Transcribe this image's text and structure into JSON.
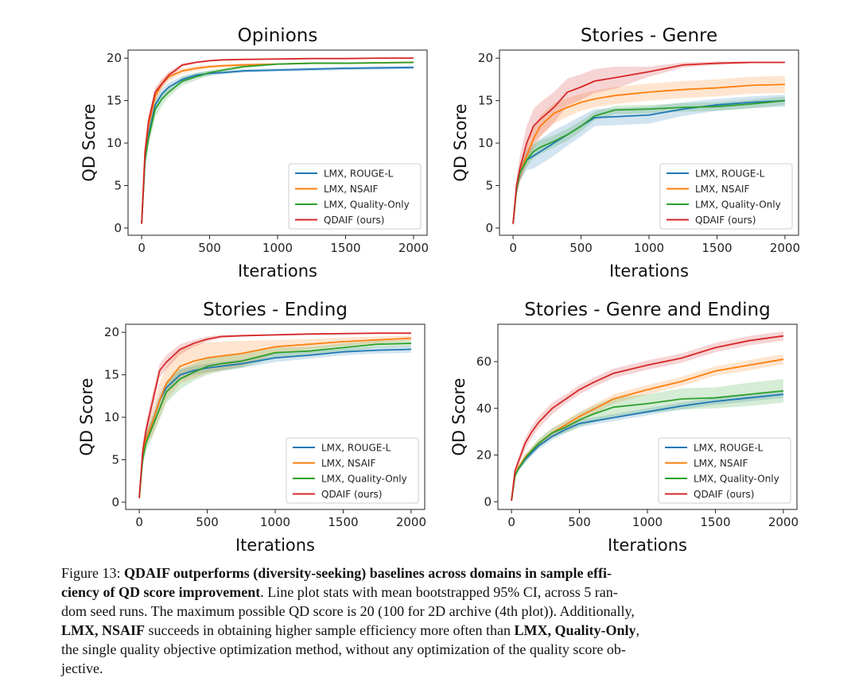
{
  "colors": {
    "LMX, ROUGE-L": "#1f77b4",
    "LMX, NSAIF": "#ff7f0e",
    "LMX, Quality-Only": "#2ca02c",
    "QDAIF (ours)": "#d62728"
  },
  "chart_data": [
    {
      "type": "line",
      "title": "Opinions",
      "xlabel": "Iterations",
      "ylabel": "QD Score",
      "xlim": [
        -100,
        2100
      ],
      "ylim": [
        -0.85,
        20.95
      ],
      "xticks": [
        0,
        500,
        1000,
        1500,
        2000
      ],
      "yticks": [
        0,
        5,
        10,
        15,
        20
      ],
      "legend": "lower-right",
      "grid": false,
      "x": [
        0,
        25,
        50,
        100,
        150,
        200,
        300,
        400,
        500,
        600,
        750,
        1000,
        1250,
        1500,
        1750,
        2000
      ],
      "series": [
        {
          "name": "LMX, ROUGE-L",
          "values": [
            0.5,
            8,
            11,
            14.5,
            15.8,
            16.6,
            17.5,
            18,
            18.2,
            18.3,
            18.5,
            18.6,
            18.7,
            18.8,
            18.85,
            18.9
          ],
          "ci": [
            0.3,
            0.8,
            0.8,
            0.8,
            0.6,
            0.5,
            0.4,
            0.3,
            0.3,
            0.2,
            0.2,
            0.2,
            0.2,
            0.2,
            0.2,
            0.2
          ]
        },
        {
          "name": "LMX, NSAIF",
          "values": [
            0.5,
            9,
            12,
            15.5,
            17,
            17.8,
            18.5,
            18.8,
            19,
            19.1,
            19.2,
            19.3,
            19.4,
            19.4,
            19.45,
            19.5
          ],
          "ci": [
            0.3,
            0.8,
            0.8,
            0.7,
            0.6,
            0.5,
            0.3,
            0.3,
            0.2,
            0.2,
            0.2,
            0.1,
            0.1,
            0.1,
            0.1,
            0.1
          ]
        },
        {
          "name": "LMX, Quality-Only",
          "values": [
            0.5,
            8,
            10.5,
            14,
            15.2,
            16,
            17.3,
            17.8,
            18.3,
            18.6,
            19,
            19.3,
            19.4,
            19.4,
            19.45,
            19.5
          ],
          "ci": [
            0.3,
            1,
            1,
            1,
            0.8,
            0.6,
            0.5,
            0.4,
            0.3,
            0.2,
            0.2,
            0.1,
            0.1,
            0.1,
            0.1,
            0.1
          ]
        },
        {
          "name": "QDAIF (ours)",
          "values": [
            0.5,
            9,
            12.5,
            16,
            17,
            18,
            19.2,
            19.5,
            19.7,
            19.8,
            19.85,
            19.9,
            19.95,
            19.95,
            20,
            20
          ],
          "ci": [
            0.3,
            0.8,
            0.8,
            0.6,
            0.5,
            0.4,
            0.2,
            0.1,
            0.1,
            0.1,
            0.1,
            0.1,
            0.05,
            0.05,
            0.05,
            0.05
          ]
        }
      ]
    },
    {
      "type": "line",
      "title": "Stories - Genre",
      "xlabel": "Iterations",
      "ylabel": "QD Score",
      "xlim": [
        -100,
        2100
      ],
      "ylim": [
        -0.85,
        20.95
      ],
      "xticks": [
        0,
        500,
        1000,
        1500,
        2000
      ],
      "yticks": [
        0,
        5,
        10,
        15,
        20
      ],
      "legend": "lower-right",
      "grid": false,
      "x": [
        0,
        25,
        50,
        100,
        150,
        200,
        300,
        400,
        500,
        600,
        750,
        1000,
        1250,
        1500,
        1750,
        2000
      ],
      "series": [
        {
          "name": "LMX, ROUGE-L",
          "values": [
            0.5,
            4.5,
            6.5,
            8,
            8.5,
            9,
            10,
            11,
            12,
            13,
            13.1,
            13.3,
            14,
            14.5,
            14.8,
            15
          ],
          "ci": [
            0.3,
            0.8,
            1,
            1.2,
            1.5,
            1.5,
            1.5,
            1.3,
            1.2,
            1,
            1,
            1,
            0.8,
            0.7,
            0.7,
            0.7
          ]
        },
        {
          "name": "LMX, NSAIF",
          "values": [
            0.5,
            4.5,
            6.5,
            8.5,
            10.5,
            12,
            13.5,
            14.2,
            14.8,
            15.2,
            15.6,
            16,
            16.3,
            16.5,
            16.8,
            16.9
          ],
          "ci": [
            0.3,
            0.8,
            1,
            1.2,
            1.3,
            1.3,
            1.2,
            1.1,
            1,
            1,
            1,
            1,
            1,
            1,
            1,
            1
          ]
        },
        {
          "name": "LMX, Quality-Only",
          "values": [
            0.5,
            4.5,
            6.5,
            8,
            9,
            9.5,
            10.2,
            11,
            12,
            13.2,
            13.9,
            14,
            14.2,
            14.3,
            14.6,
            15
          ],
          "ci": [
            0.3,
            0.6,
            0.8,
            0.8,
            0.8,
            0.8,
            0.7,
            0.7,
            0.6,
            0.5,
            0.5,
            0.5,
            0.5,
            0.5,
            0.5,
            0.5
          ]
        },
        {
          "name": "QDAIF (ours)",
          "values": [
            0.5,
            5,
            7,
            10,
            12,
            12.8,
            14.2,
            16,
            16.6,
            17.3,
            17.7,
            18.4,
            19.2,
            19.4,
            19.5,
            19.5
          ],
          "ci": [
            0.3,
            1,
            1.5,
            2,
            2,
            2,
            1.8,
            1.6,
            1.5,
            1.4,
            1.3,
            0.6,
            0.3,
            0.2,
            0.1,
            0.1
          ]
        }
      ]
    },
    {
      "type": "line",
      "title": "Stories - Ending",
      "xlabel": "Iterations",
      "ylabel": "QD Score",
      "xlim": [
        -100,
        2100
      ],
      "ylim": [
        -0.85,
        20.95
      ],
      "xticks": [
        0,
        500,
        1000,
        1500,
        2000
      ],
      "yticks": [
        0,
        5,
        10,
        15,
        20
      ],
      "legend": "lower-right",
      "grid": false,
      "x": [
        0,
        25,
        50,
        100,
        150,
        200,
        300,
        400,
        500,
        600,
        750,
        1000,
        1250,
        1500,
        1750,
        2000
      ],
      "series": [
        {
          "name": "LMX, ROUGE-L",
          "values": [
            0.5,
            5.5,
            7.5,
            9.5,
            12,
            13.5,
            15,
            15.5,
            15.8,
            16,
            16.3,
            17,
            17.3,
            17.7,
            17.9,
            18
          ],
          "ci": [
            0.3,
            0.8,
            0.8,
            0.8,
            0.8,
            0.7,
            0.6,
            0.5,
            0.5,
            0.5,
            0.5,
            0.5,
            0.4,
            0.4,
            0.4,
            0.4
          ]
        },
        {
          "name": "LMX, NSAIF",
          "values": [
            0.5,
            5.5,
            7.5,
            9.5,
            12,
            14,
            16,
            16.6,
            17,
            17.2,
            17.5,
            18.3,
            18.6,
            18.9,
            19.1,
            19.3
          ],
          "ci": [
            0.3,
            0.8,
            1,
            1.5,
            2,
            2,
            2,
            2,
            1.8,
            1.7,
            1.5,
            0.8,
            0.6,
            0.5,
            0.4,
            0.3
          ]
        },
        {
          "name": "LMX, Quality-Only",
          "values": [
            0.5,
            5,
            7,
            9,
            11,
            13,
            14.5,
            15.3,
            16,
            16.3,
            16.6,
            17.6,
            17.8,
            18.2,
            18.6,
            18.7
          ],
          "ci": [
            0.3,
            0.8,
            1,
            1.2,
            1.3,
            1.3,
            1.2,
            1,
            1,
            0.9,
            0.8,
            0.6,
            0.5,
            0.5,
            0.4,
            0.4
          ]
        },
        {
          "name": "QDAIF (ours)",
          "values": [
            0.5,
            6,
            8.5,
            12,
            15.5,
            16.5,
            18,
            18.7,
            19.2,
            19.5,
            19.6,
            19.7,
            19.8,
            19.85,
            19.9,
            19.9
          ],
          "ci": [
            0.3,
            0.8,
            1,
            1,
            0.8,
            0.8,
            0.6,
            0.4,
            0.3,
            0.2,
            0.1,
            0.1,
            0.1,
            0.1,
            0.1,
            0.1
          ]
        }
      ]
    },
    {
      "type": "line",
      "title": "Stories - Genre and Ending",
      "xlabel": "Iterations",
      "ylabel": "QD Score",
      "xlim": [
        -100,
        2100
      ],
      "ylim": [
        -3.3,
        76
      ],
      "xticks": [
        0,
        500,
        1000,
        1500,
        2000
      ],
      "yticks": [
        0,
        20,
        40,
        60
      ],
      "legend": "lower-right",
      "grid": false,
      "x": [
        0,
        25,
        50,
        100,
        150,
        200,
        300,
        400,
        500,
        600,
        750,
        1000,
        1250,
        1500,
        1750,
        2000
      ],
      "series": [
        {
          "name": "LMX, ROUGE-L",
          "values": [
            0.5,
            11,
            14,
            18,
            21,
            24,
            28,
            31,
            33.5,
            34.5,
            36,
            38.5,
            41,
            43,
            44.5,
            46
          ],
          "ci": [
            0.5,
            1,
            1,
            1.5,
            1.5,
            1.5,
            1.5,
            1.5,
            1.5,
            1.5,
            1.5,
            1.5,
            1.5,
            1.5,
            1.5,
            1.5
          ]
        },
        {
          "name": "LMX, NSAIF",
          "values": [
            0.5,
            11,
            14.5,
            19,
            22,
            25,
            29.5,
            33,
            36.5,
            39.5,
            44,
            48,
            51.5,
            56,
            58.5,
            61
          ],
          "ci": [
            0.5,
            1,
            1,
            1.5,
            1.5,
            1.5,
            2,
            2,
            2,
            2,
            2,
            2,
            2,
            2,
            2.2,
            2.2
          ]
        },
        {
          "name": "LMX, Quality-Only",
          "values": [
            0.5,
            11,
            14,
            18.5,
            22,
            25,
            29.5,
            32,
            35,
            37.5,
            40.5,
            42,
            44,
            44.5,
            46,
            47.5
          ],
          "ci": [
            0.5,
            1,
            1,
            1.5,
            1.5,
            2,
            2,
            2.5,
            3,
            3.5,
            4,
            4,
            4.5,
            4.5,
            5,
            5
          ]
        },
        {
          "name": "QDAIF (ours)",
          "values": [
            0.5,
            13,
            17,
            25,
            30,
            34,
            40,
            44,
            48,
            51,
            55,
            58.5,
            61.5,
            66,
            69,
            71
          ],
          "ci": [
            0.5,
            1.5,
            2,
            2.5,
            2.5,
            2.5,
            2.5,
            2,
            2,
            2,
            2,
            2,
            2,
            2,
            2,
            2
          ]
        }
      ]
    }
  ],
  "caption": {
    "lines": [
      [
        {
          "t": "Figure 13: ",
          "b": false
        },
        {
          "t": "QDAIF outperforms (diversity-seeking) baselines across domains in sample effi-",
          "b": true
        }
      ],
      [
        {
          "t": "ciency of QD score improvement",
          "b": true
        },
        {
          "t": ". Line plot stats with mean bootstrapped 95% CI, across 5 ran-",
          "b": false
        }
      ],
      [
        {
          "t": "dom seed runs. The maximum possible QD score is 20 (100 for 2D archive (4th plot)). Additionally,",
          "b": false
        }
      ],
      [
        {
          "t": "LMX, NSAIF",
          "b": true
        },
        {
          "t": " succeeds in obtaining higher sample efficiency more often than ",
          "b": false
        },
        {
          "t": "LMX, Quality-Only",
          "b": true
        },
        {
          "t": ",",
          "b": false
        }
      ],
      [
        {
          "t": "the single quality objective optimization method, without any optimization of the quality score ob-",
          "b": false
        }
      ],
      [
        {
          "t": "jective.",
          "b": false
        }
      ]
    ]
  }
}
